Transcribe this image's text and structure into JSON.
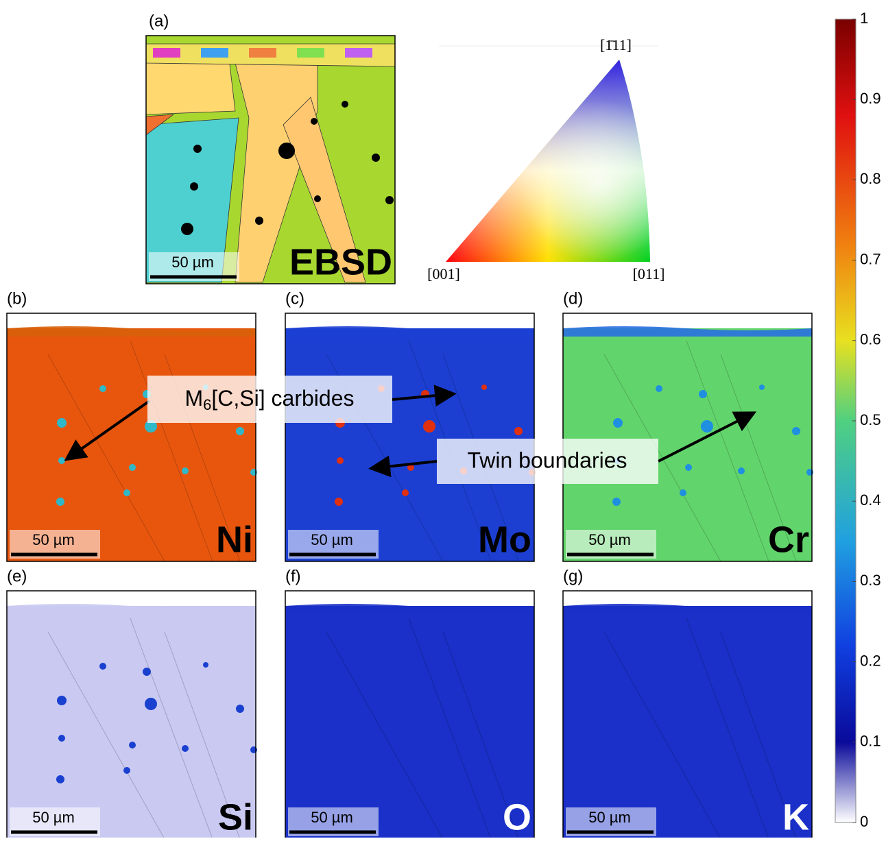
{
  "panels": [
    {
      "label": "(a)",
      "name": "EBSD",
      "scale_bar": "50 µm"
    },
    {
      "label": "(b)",
      "name": "Ni",
      "scale_bar": "50 µm"
    },
    {
      "label": "(c)",
      "name": "Mo",
      "scale_bar": "50 µm"
    },
    {
      "label": "(d)",
      "name": "Cr",
      "scale_bar": "50 µm"
    },
    {
      "label": "(e)",
      "name": "Si",
      "scale_bar": "50 µm"
    },
    {
      "label": "(f)",
      "name": "O",
      "scale_bar": "50 µm"
    },
    {
      "label": "(g)",
      "name": "K",
      "scale_bar": "50 µm"
    }
  ],
  "ipf": {
    "top": "[1̄11]",
    "left": "[001]",
    "right": "[011]"
  },
  "annotations": {
    "carbides": {
      "text": "M",
      "subscript": "6",
      "rest": "[C,Si] carbides"
    },
    "twins": "Twin boundaries"
  },
  "colorbar": {
    "lim": [
      0,
      1
    ],
    "ticks": [
      0,
      0.1,
      0.2,
      0.3,
      0.4,
      0.5,
      0.6,
      0.7,
      0.8,
      0.9,
      1
    ]
  }
}
